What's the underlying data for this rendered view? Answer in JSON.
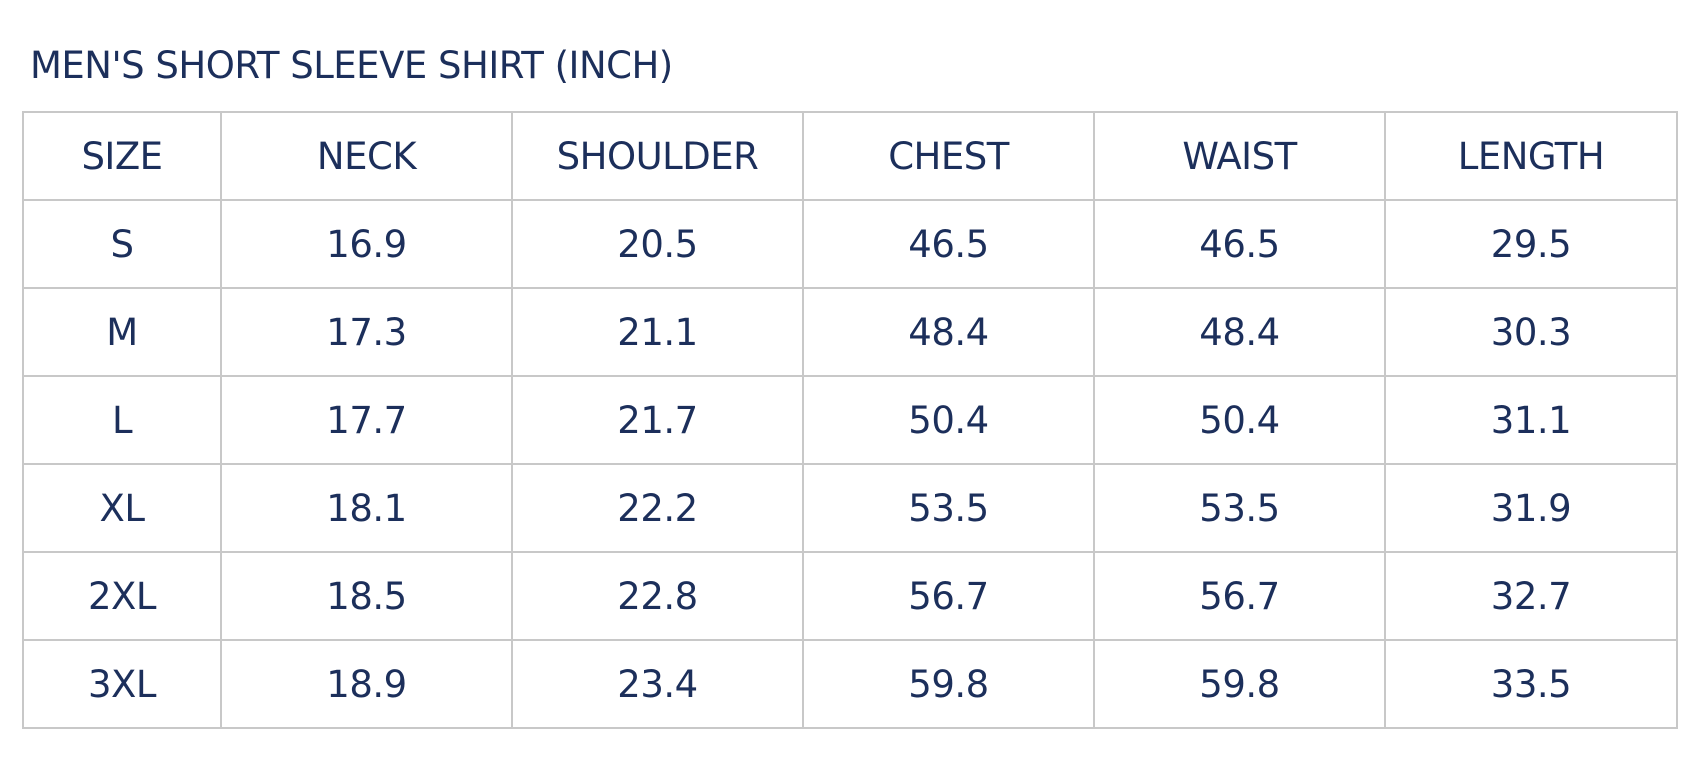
{
  "title": "MEN'S SHORT SLEEVE SHIRT (INCH)",
  "colors": {
    "text": "#1c2f5b",
    "border": "#c8c8c8"
  },
  "table": {
    "headers": [
      "SIZE",
      "NECK",
      "SHOULDER",
      "CHEST",
      "WAIST",
      "LENGTH"
    ],
    "rows": [
      [
        "S",
        "16.9",
        "20.5",
        "46.5",
        "46.5",
        "29.5"
      ],
      [
        "M",
        "17.3",
        "21.1",
        "48.4",
        "48.4",
        "30.3"
      ],
      [
        "L",
        "17.7",
        "21.7",
        "50.4",
        "50.4",
        "31.1"
      ],
      [
        "XL",
        "18.1",
        "22.2",
        "53.5",
        "53.5",
        "31.9"
      ],
      [
        "2XL",
        "18.5",
        "22.8",
        "56.7",
        "56.7",
        "32.7"
      ],
      [
        "3XL",
        "18.9",
        "23.4",
        "59.8",
        "59.8",
        "33.5"
      ]
    ]
  }
}
